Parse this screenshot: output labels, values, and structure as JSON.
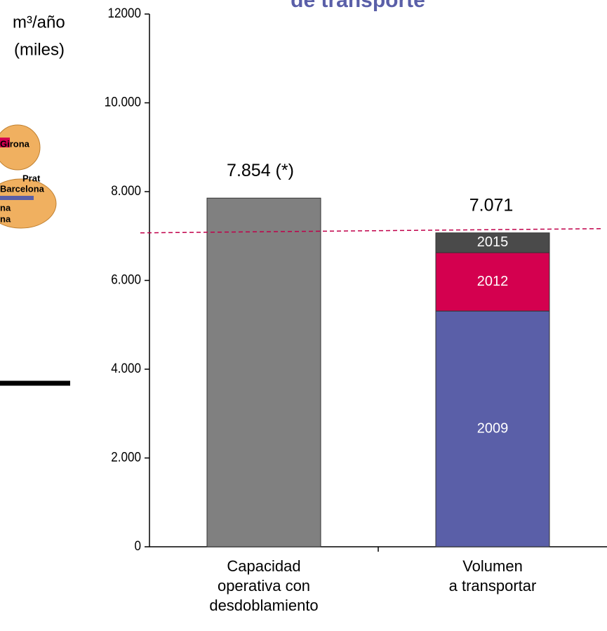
{
  "chart_data": {
    "type": "stacked-bar",
    "title": "de transporte",
    "y_label": [
      "m³/año",
      "(miles)"
    ],
    "categories": [
      "Capacidad\noperativa con\ndesdoblamiento",
      "Volumen\na transportar"
    ],
    "series": [
      {
        "color": "#808080",
        "values": [
          7854,
          null
        ],
        "value_labels": [
          "7.854 (*)",
          null
        ]
      },
      {
        "name": "2009",
        "color": "#5a5fa8",
        "values": [
          null,
          5310
        ]
      },
      {
        "name": "2012",
        "color": "#d4004f",
        "values": [
          null,
          1315
        ]
      },
      {
        "name": "2015",
        "color": "#4a4a4a",
        "values": [
          null,
          446
        ]
      }
    ],
    "total": {
      "value": 7071,
      "label": "7.071"
    },
    "ylim": [
      0,
      12000
    ],
    "yticks": [
      0,
      {
        "value": 2000,
        "label": "2.000"
      },
      {
        "value": 4000,
        "label": "4.000"
      },
      {
        "value": 6000,
        "label": "6.000"
      },
      {
        "value": 8000,
        "label": "8.000"
      },
      {
        "value": 10000,
        "label": "10.000"
      },
      12000
    ],
    "map_labels": [
      "Girona",
      "Prat",
      "Barcelona",
      "na",
      "na"
    ]
  }
}
